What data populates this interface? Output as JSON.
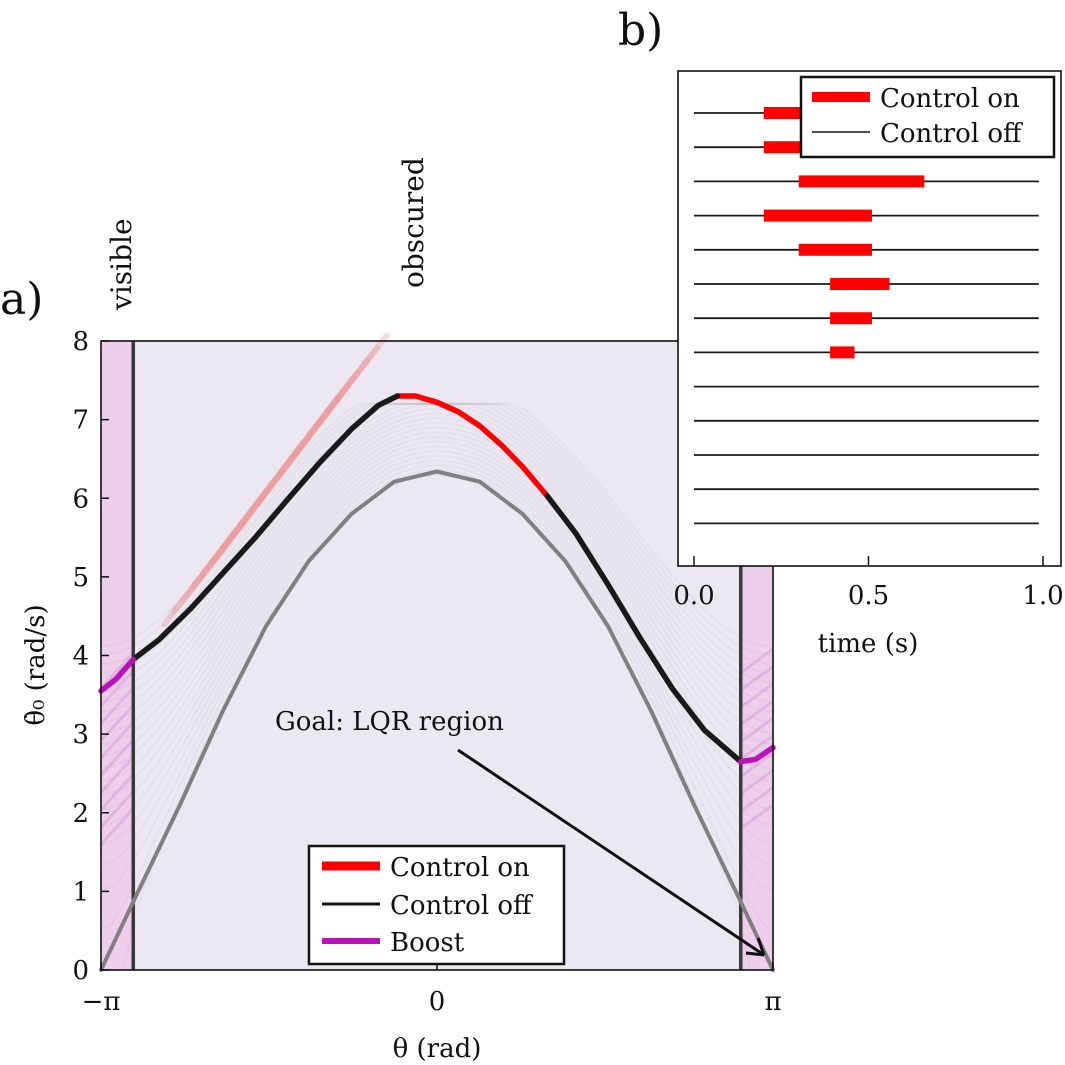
{
  "panel_labels": {
    "a": "a)",
    "b": "b)"
  },
  "region_labels": {
    "visible": "visible",
    "obscured": "obscured"
  },
  "colors": {
    "background": "#ebe8f1",
    "control_on": "#ff0000",
    "control_off": "#1a1a1a",
    "boost": "#bb11bb",
    "lower_curve": "#808080",
    "boost_fill": "#efb8e6",
    "red_fan": "#ee9a9a",
    "purple_fan": "#c98ccf"
  },
  "annotation": {
    "text": "Goal: LQR region"
  },
  "chart_data": [
    {
      "id": "a",
      "type": "line",
      "xlabel": "θ (rad)",
      "ylabel": "θ̇₀ (rad/s)",
      "xlim": [
        -3.1416,
        3.1416
      ],
      "ylim": [
        0,
        8
      ],
      "xticks": [
        -3.1416,
        0,
        3.1416
      ],
      "xticklabels": [
        "−π",
        "0",
        "π"
      ],
      "yticks": [
        0,
        1,
        2,
        3,
        4,
        5,
        6,
        7,
        8
      ],
      "yticklabels": [
        "0",
        "1",
        "2",
        "3",
        "4",
        "5",
        "6",
        "7",
        "8"
      ],
      "legend": {
        "placement": "bottom-center",
        "entries": [
          "Control on",
          "Control off",
          "Boost"
        ]
      },
      "vertical_lines_theta": [
        -2.84,
        2.84
      ],
      "series": [
        {
          "name": "Control on",
          "role": "upper",
          "x": [
            -0.37,
            -0.2,
            0.0,
            0.2,
            0.4,
            0.6,
            0.8,
            1.03
          ],
          "y": [
            7.3,
            7.3,
            7.22,
            7.1,
            6.92,
            6.68,
            6.4,
            6.03
          ]
        },
        {
          "name": "Control off",
          "role": "upper",
          "x": [
            -2.84,
            -2.6,
            -2.3,
            -2.0,
            -1.7,
            -1.4,
            -1.1,
            -0.8,
            -0.55,
            -0.37
          ],
          "y": [
            3.95,
            4.2,
            4.6,
            5.05,
            5.5,
            5.98,
            6.45,
            6.88,
            7.18,
            7.3
          ]
        },
        {
          "name": "Control off",
          "role": "upper-right",
          "x": [
            1.03,
            1.3,
            1.6,
            1.9,
            2.2,
            2.5,
            2.84
          ],
          "y": [
            6.03,
            5.55,
            4.9,
            4.22,
            3.58,
            3.05,
            2.65
          ]
        },
        {
          "name": "Boost",
          "role": "left",
          "x": [
            -3.1416,
            -3.0,
            -2.84
          ],
          "y": [
            3.55,
            3.7,
            3.95
          ]
        },
        {
          "name": "Boost",
          "role": "right",
          "x": [
            2.84,
            2.98,
            3.1416
          ],
          "y": [
            2.65,
            2.68,
            2.83
          ]
        },
        {
          "role": "lower-separatrix",
          "x": [
            -3.1416,
            -2.8,
            -2.4,
            -2.0,
            -1.6,
            -1.2,
            -0.8,
            -0.4,
            0.0,
            0.4,
            0.8,
            1.2,
            1.6,
            2.0,
            2.4,
            2.8,
            3.1416
          ],
          "y": [
            0.0,
            0.98,
            2.11,
            3.3,
            4.37,
            5.2,
            5.8,
            6.21,
            6.34,
            6.21,
            5.8,
            5.2,
            4.37,
            3.3,
            2.11,
            0.98,
            0.0
          ]
        }
      ]
    },
    {
      "id": "b",
      "type": "bar",
      "xlabel": "time (s)",
      "xlim": [
        0,
        1.0
      ],
      "xticks": [
        0.0,
        0.5,
        1.0
      ],
      "xticklabels": [
        "0.0",
        "0.5",
        "1.0"
      ],
      "legend": {
        "placement": "top-right",
        "entries": [
          "Control on",
          "Control off"
        ]
      },
      "rows": [
        {
          "on": [
            0.2,
            0.32
          ]
        },
        {
          "on": [
            0.2,
            0.32
          ]
        },
        {
          "on": [
            0.3,
            0.66
          ]
        },
        {
          "on": [
            0.2,
            0.51
          ]
        },
        {
          "on": [
            0.3,
            0.51
          ]
        },
        {
          "on": [
            0.39,
            0.56
          ]
        },
        {
          "on": [
            0.39,
            0.51
          ]
        },
        {
          "on": [
            0.39,
            0.46
          ]
        },
        {
          "on": null
        },
        {
          "on": null
        },
        {
          "on": null
        },
        {
          "on": null
        },
        {
          "on": null
        }
      ]
    }
  ]
}
